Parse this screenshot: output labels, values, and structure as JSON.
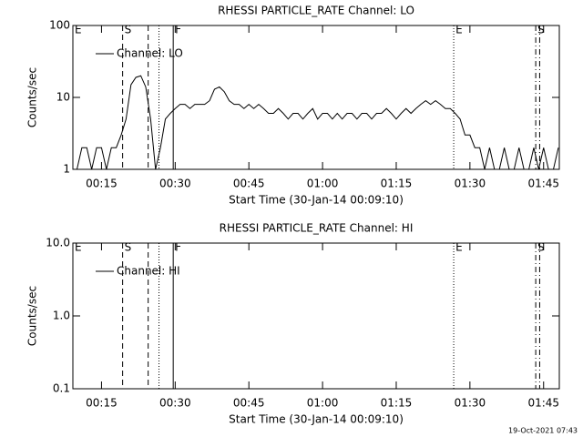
{
  "chart_data": [
    {
      "type": "line",
      "title": "RHESSI PARTICLE_RATE Channel: LO",
      "x_label": "Start Time (30-Jan-14 00:09:10)",
      "y_label": "Counts/sec",
      "log_y": true,
      "legend": "upper left",
      "xlim": [
        9.17,
        108.2
      ],
      "xticks": [
        {
          "value": 15,
          "label": "00:15"
        },
        {
          "value": 30,
          "label": "00:30"
        },
        {
          "value": 45,
          "label": "00:45"
        },
        {
          "value": 60,
          "label": "01:00"
        },
        {
          "value": 75,
          "label": "01:15"
        },
        {
          "value": 90,
          "label": "01:30"
        },
        {
          "value": 105,
          "label": "01:45"
        }
      ],
      "ylim": [
        1,
        100
      ],
      "yticks": [
        1,
        10,
        100
      ],
      "x": [
        10,
        11,
        12,
        13,
        14,
        15,
        16,
        17,
        18,
        19,
        20,
        21,
        22,
        23,
        24,
        25,
        26,
        27,
        28,
        29,
        30,
        31,
        32,
        33,
        34,
        35,
        36,
        37,
        38,
        39,
        40,
        41,
        42,
        43,
        44,
        45,
        46,
        47,
        48,
        49,
        50,
        51,
        52,
        53,
        54,
        55,
        56,
        57,
        58,
        59,
        60,
        61,
        62,
        63,
        64,
        65,
        66,
        67,
        68,
        69,
        70,
        71,
        72,
        73,
        74,
        75,
        76,
        77,
        78,
        79,
        80,
        81,
        82,
        83,
        84,
        85,
        86,
        87,
        88,
        89,
        90,
        91,
        92,
        93,
        94,
        95,
        96,
        97,
        98,
        99,
        100,
        101,
        102,
        103,
        104,
        105,
        106,
        107,
        108
      ],
      "series": [
        {
          "name": "Channel: LO",
          "color": "#000000",
          "values": [
            1,
            2,
            2,
            1,
            2,
            2,
            1,
            2,
            2,
            3,
            5,
            15,
            19,
            20,
            14,
            5,
            1,
            2,
            5,
            6,
            7,
            8,
            8,
            7,
            8,
            8,
            8,
            9,
            13,
            14,
            12,
            9,
            8,
            8,
            7,
            8,
            7,
            8,
            7,
            6,
            6,
            7,
            6,
            5,
            6,
            6,
            5,
            6,
            7,
            5,
            6,
            6,
            5,
            6,
            5,
            6,
            6,
            5,
            6,
            6,
            5,
            6,
            6,
            7,
            6,
            5,
            6,
            7,
            6,
            7,
            8,
            9,
            8,
            9,
            8,
            7,
            7,
            6,
            5,
            3,
            3,
            2,
            2,
            1,
            2,
            1,
            1,
            2,
            1,
            1,
            2,
            1,
            1,
            2,
            1,
            2,
            1,
            1,
            2
          ]
        }
      ],
      "events": [
        {
          "x": 9.17,
          "style": "solid",
          "label": "E"
        },
        {
          "x": 19.3,
          "style": "dashed",
          "label": "S"
        },
        {
          "x": 24.5,
          "style": "dashed"
        },
        {
          "x": 26.7,
          "style": "dotted"
        },
        {
          "x": 29.6,
          "style": "solid",
          "label": "F"
        },
        {
          "x": 86.7,
          "style": "dotted",
          "label": "E"
        },
        {
          "x": 103.4,
          "style": "dash-dot",
          "label": "S"
        },
        {
          "x": 104.2,
          "style": "dash-dot"
        }
      ]
    },
    {
      "type": "line",
      "title": "RHESSI PARTICLE_RATE Channel: HI",
      "x_label": "Start Time (30-Jan-14 00:09:10)",
      "y_label": "Counts/sec",
      "log_y": true,
      "legend": "upper left",
      "xlim": [
        9.17,
        108.2
      ],
      "xticks": [
        {
          "value": 15,
          "label": "00:15"
        },
        {
          "value": 30,
          "label": "00:30"
        },
        {
          "value": 45,
          "label": "00:45"
        },
        {
          "value": 60,
          "label": "01:00"
        },
        {
          "value": 75,
          "label": "01:15"
        },
        {
          "value": 90,
          "label": "01:30"
        },
        {
          "value": 105,
          "label": "01:45"
        }
      ],
      "ylim": [
        0.1,
        10
      ],
      "yticks": [
        0.1,
        {
          "value": 1,
          "label": "1.0"
        },
        {
          "value": 10,
          "label": "10.0"
        }
      ],
      "x": [],
      "series": [
        {
          "name": "Channel: HI",
          "color": "#000000",
          "values": []
        }
      ],
      "events": [
        {
          "x": 9.17,
          "style": "solid",
          "label": "E"
        },
        {
          "x": 19.3,
          "style": "dashed",
          "label": "S"
        },
        {
          "x": 24.5,
          "style": "dashed"
        },
        {
          "x": 26.7,
          "style": "dotted"
        },
        {
          "x": 29.6,
          "style": "solid",
          "label": "F"
        },
        {
          "x": 86.7,
          "style": "dotted",
          "label": "E"
        },
        {
          "x": 103.4,
          "style": "dash-dot",
          "label": "S"
        },
        {
          "x": 104.2,
          "style": "dash-dot"
        }
      ]
    }
  ],
  "footer": "19-Oct-2021 07:43"
}
